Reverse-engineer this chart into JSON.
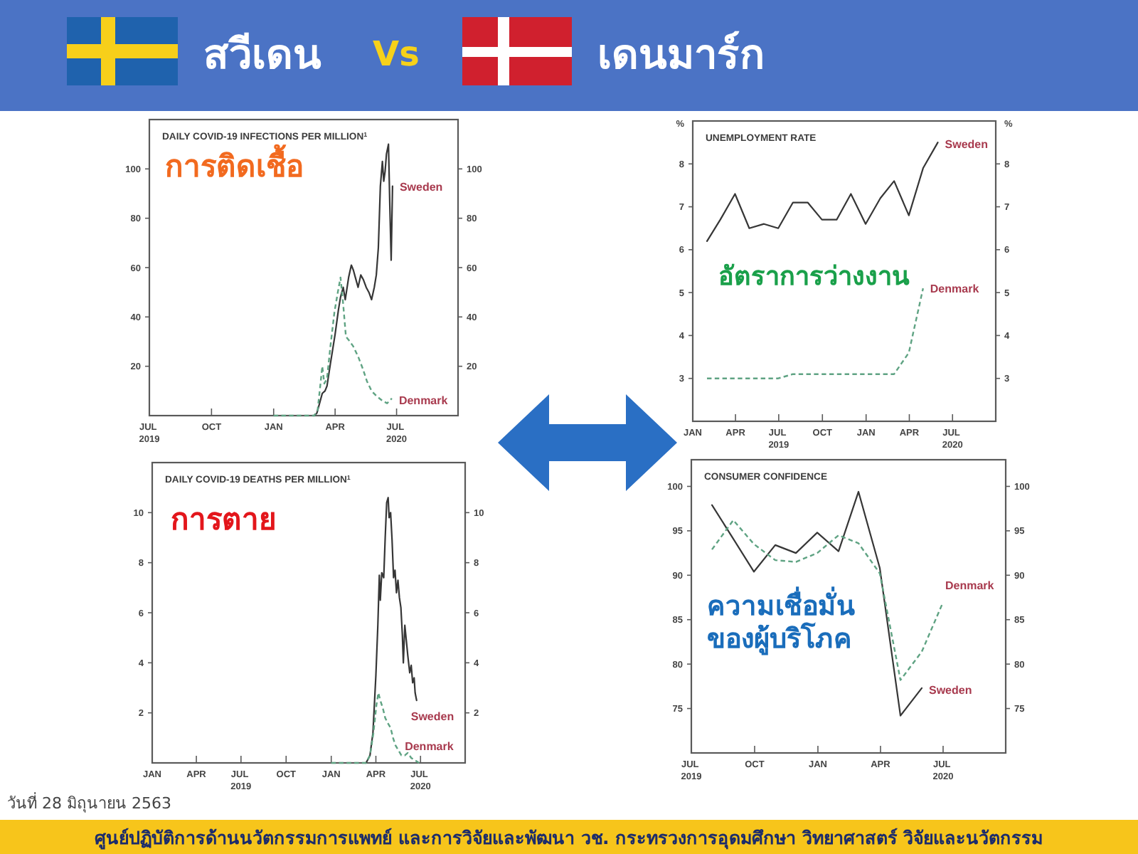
{
  "chart_data": [
    {
      "type": "other",
      "annotations": [
        "สวีเดน",
        "Vs",
        "เดนมาร์ก"
      ]
    },
    {
      "type": "line",
      "title": "DAILY COVID-19 INFECTIONS PER MILLION$^{1}$",
      "subtitle": "การติดเชื้อ",
      "xlim": [
        "2019-07-01",
        "2020-09-30"
      ],
      "xticks": [
        {
          "value": "2019-07-01",
          "label": "JUL\n2019"
        },
        {
          "value": "2019-10-01",
          "label": "OCT"
        },
        {
          "value": "2020-01-01",
          "label": "JAN"
        },
        {
          "value": "2020-04-01",
          "label": "APR"
        },
        {
          "value": "2020-07-01",
          "label": "JUL\n2020"
        }
      ],
      "ylim": [
        0,
        120
      ],
      "yticks": [
        20,
        40,
        60,
        80,
        100
      ],
      "y2lim": [
        0,
        120
      ],
      "y2ticks": [
        20,
        40,
        60,
        80,
        100
      ],
      "series": [
        {
          "name": "Sweden",
          "color": "#363636",
          "line_style": "solid",
          "x": [
            "2020-03-01",
            "2020-03-05",
            "2020-03-10",
            "2020-03-13",
            "2020-03-17",
            "2020-03-20",
            "2020-03-25",
            "2020-04-01",
            "2020-04-06",
            "2020-04-09",
            "2020-04-13",
            "2020-04-16",
            "2020-04-21",
            "2020-04-25",
            "2020-04-28",
            "2020-05-01",
            "2020-05-05",
            "2020-05-09",
            "2020-05-13",
            "2020-05-17",
            "2020-05-21",
            "2020-05-25",
            "2020-05-29",
            "2020-06-01",
            "2020-06-04",
            "2020-06-07",
            "2020-06-10",
            "2020-06-12",
            "2020-06-14",
            "2020-06-16",
            "2020-06-19",
            "2020-06-21",
            "2020-06-23",
            "2020-06-25"
          ],
          "values": [
            0,
            1,
            6,
            9,
            10,
            12,
            21,
            33,
            43,
            48,
            52,
            47,
            56,
            61,
            59,
            56,
            52,
            57,
            55,
            52,
            50,
            47,
            52,
            57,
            68,
            93,
            103,
            95,
            99,
            106,
            110,
            85,
            63,
            93
          ]
        },
        {
          "name": "Denmark",
          "color": "#5fa383",
          "line_style": "dashed",
          "x": [
            "2020-01-01",
            "2020-03-01",
            "2020-03-06",
            "2020-03-10",
            "2020-03-13",
            "2020-03-16",
            "2020-03-20",
            "2020-03-25",
            "2020-03-31",
            "2020-04-05",
            "2020-04-09",
            "2020-04-13",
            "2020-04-17",
            "2020-04-23",
            "2020-04-28",
            "2020-05-05",
            "2020-05-12",
            "2020-05-18",
            "2020-05-25",
            "2020-06-01",
            "2020-06-10",
            "2020-06-17",
            "2020-06-24"
          ],
          "values": [
            0,
            0,
            2,
            12,
            20,
            13,
            15,
            28,
            42,
            50,
            56,
            45,
            32,
            30,
            28,
            24,
            19,
            14,
            10,
            8,
            6,
            5,
            7
          ]
        }
      ]
    },
    {
      "type": "line",
      "title": "UNEMPLOYMENT RATE",
      "subtitle": "อัตราการว่างงาน",
      "ylabel": "%",
      "y2label": "%",
      "xlim": [
        "2019-01-01",
        "2020-09-30"
      ],
      "xticks": [
        {
          "value": "2019-01-01",
          "label": "JAN"
        },
        {
          "value": "2019-04-01",
          "label": "APR"
        },
        {
          "value": "2019-07-01",
          "label": "JUL\n2019"
        },
        {
          "value": "2019-10-01",
          "label": "OCT"
        },
        {
          "value": "2020-01-01",
          "label": "JAN"
        },
        {
          "value": "2020-04-01",
          "label": "APR"
        },
        {
          "value": "2020-07-01",
          "label": "JUL\n2020"
        }
      ],
      "ylim": [
        2,
        9
      ],
      "yticks": [
        3,
        4,
        5,
        6,
        7,
        8
      ],
      "y2lim": [
        2,
        9
      ],
      "y2ticks": [
        3,
        4,
        5,
        6,
        7,
        8
      ],
      "series": [
        {
          "name": "Sweden",
          "color": "#363636",
          "line_style": "solid",
          "x": [
            "2019-01-31",
            "2019-02-28",
            "2019-03-31",
            "2019-04-30",
            "2019-05-31",
            "2019-06-30",
            "2019-07-31",
            "2019-08-31",
            "2019-09-30",
            "2019-10-31",
            "2019-11-30",
            "2019-12-31",
            "2020-01-31",
            "2020-02-29",
            "2020-03-31",
            "2020-04-30",
            "2020-05-31"
          ],
          "values": [
            6.2,
            6.7,
            7.3,
            6.5,
            6.6,
            6.5,
            7.1,
            7.1,
            6.7,
            6.7,
            7.3,
            6.6,
            7.2,
            7.6,
            6.8,
            7.9,
            8.5
          ]
        },
        {
          "name": "Denmark",
          "color": "#5fa383",
          "line_style": "dashed",
          "x": [
            "2019-01-31",
            "2019-02-28",
            "2019-03-31",
            "2019-04-30",
            "2019-05-31",
            "2019-06-30",
            "2019-07-31",
            "2019-08-31",
            "2019-09-30",
            "2019-10-31",
            "2019-11-30",
            "2019-12-31",
            "2020-01-31",
            "2020-02-29",
            "2020-03-31",
            "2020-04-30"
          ],
          "values": [
            3.0,
            3.0,
            3.0,
            3.0,
            3.0,
            3.0,
            3.1,
            3.1,
            3.1,
            3.1,
            3.1,
            3.1,
            3.1,
            3.1,
            3.6,
            5.1
          ]
        }
      ]
    },
    {
      "type": "line",
      "title": "DAILY COVID-19 DEATHS PER MILLION$^{1}$",
      "subtitle": "การตาย",
      "xlim": [
        "2019-01-01",
        "2020-09-30"
      ],
      "xticks": [
        {
          "value": "2019-01-01",
          "label": "JAN"
        },
        {
          "value": "2019-04-01",
          "label": "APR"
        },
        {
          "value": "2019-07-01",
          "label": "JUL\n2019"
        },
        {
          "value": "2019-10-01",
          "label": "OCT"
        },
        {
          "value": "2020-01-01",
          "label": "JAN"
        },
        {
          "value": "2020-04-01",
          "label": "APR"
        },
        {
          "value": "2020-07-01",
          "label": "JUL\n2020"
        }
      ],
      "ylim": [
        0,
        12
      ],
      "yticks": [
        2,
        4,
        6,
        8,
        10
      ],
      "y2lim": [
        0,
        12
      ],
      "y2ticks": [
        2,
        4,
        6,
        8,
        10
      ],
      "series": [
        {
          "name": "Sweden",
          "color": "#363636",
          "line_style": "solid",
          "x": [
            "2020-03-12",
            "2020-03-20",
            "2020-03-26",
            "2020-04-01",
            "2020-04-05",
            "2020-04-08",
            "2020-04-10",
            "2020-04-13",
            "2020-04-17",
            "2020-04-20",
            "2020-04-23",
            "2020-04-26",
            "2020-04-28",
            "2020-05-01",
            "2020-05-04",
            "2020-05-07",
            "2020-05-10",
            "2020-05-13",
            "2020-05-16",
            "2020-05-19",
            "2020-05-22",
            "2020-05-25",
            "2020-05-27",
            "2020-05-30",
            "2020-06-02",
            "2020-06-05",
            "2020-06-09",
            "2020-06-12",
            "2020-06-15",
            "2020-06-18",
            "2020-06-20",
            "2020-06-23"
          ],
          "values": [
            0,
            0.3,
            1.2,
            3.5,
            5.5,
            7.5,
            6.5,
            7.6,
            7.4,
            9,
            10.4,
            10.6,
            9.8,
            10,
            8.9,
            7.4,
            7.7,
            6.8,
            7.3,
            6.6,
            6.2,
            5.1,
            4,
            5.5,
            4.9,
            4.3,
            3.6,
            3.9,
            3.2,
            3.4,
            2.8,
            2.5
          ]
        },
        {
          "name": "Denmark",
          "color": "#5fa383",
          "line_style": "dashed",
          "x": [
            "2020-01-01",
            "2020-03-12",
            "2020-03-20",
            "2020-03-27",
            "2020-04-02",
            "2020-04-06",
            "2020-04-10",
            "2020-04-15",
            "2020-04-20",
            "2020-04-25",
            "2020-05-01",
            "2020-05-06",
            "2020-05-11",
            "2020-05-17",
            "2020-05-23",
            "2020-05-30",
            "2020-06-05",
            "2020-06-12",
            "2020-06-20",
            "2020-06-28"
          ],
          "values": [
            0,
            0,
            0.3,
            1.2,
            2.3,
            2.8,
            2.5,
            2.2,
            1.8,
            1.6,
            1.4,
            1,
            0.7,
            0.5,
            0.3,
            0.3,
            0.4,
            0.2,
            0.1,
            0
          ]
        }
      ]
    },
    {
      "type": "line",
      "title": "CONSUMER CONFIDENCE",
      "subtitle": "ความเชื่อมั่น\nของผู้บริโภค",
      "xlim": [
        "2019-07-01",
        "2020-09-30"
      ],
      "xticks": [
        {
          "value": "2019-07-01",
          "label": "JUL\n2019"
        },
        {
          "value": "2019-10-01",
          "label": "OCT"
        },
        {
          "value": "2020-01-01",
          "label": "JAN"
        },
        {
          "value": "2020-04-01",
          "label": "APR"
        },
        {
          "value": "2020-07-01",
          "label": "JUL\n2020"
        }
      ],
      "ylim": [
        70,
        103
      ],
      "yticks": [
        75,
        80,
        85,
        90,
        95,
        100
      ],
      "y2lim": [
        70,
        103
      ],
      "y2ticks": [
        75,
        80,
        85,
        90,
        95,
        100
      ],
      "series": [
        {
          "name": "Sweden",
          "color": "#363636",
          "line_style": "solid",
          "x": [
            "2019-07-31",
            "2019-08-31",
            "2019-09-30",
            "2019-10-31",
            "2019-11-30",
            "2019-12-31",
            "2020-01-31",
            "2020-02-29",
            "2020-03-31",
            "2020-04-30",
            "2020-05-31"
          ],
          "values": [
            97.9,
            94.1,
            90.4,
            93.4,
            92.5,
            94.8,
            92.7,
            99.4,
            90.8,
            74.2,
            77.3
          ]
        },
        {
          "name": "Denmark",
          "color": "#5fa383",
          "line_style": "dashed",
          "x": [
            "2019-07-31",
            "2019-08-31",
            "2019-09-30",
            "2019-10-31",
            "2019-11-30",
            "2019-12-31",
            "2020-01-31",
            "2020-02-29",
            "2020-03-31",
            "2020-04-30",
            "2020-05-31",
            "2020-06-30"
          ],
          "values": [
            92.9,
            96.2,
            93.5,
            91.7,
            91.5,
            92.5,
            94.5,
            93.6,
            90.2,
            78.2,
            81.4,
            86.8
          ]
        }
      ]
    },
    {
      "type": "other",
      "annotations": [
        "วันที่ 28 มิถุนายน 2563",
        "ศูนย์ปฏิบัติการด้านนวัตกรรมการแพทย์ และการวิจัยและพัฒนา วช. กระทรวงการอุดมศึกษา วิทยาศาสตร์ วิจัยและนวัตกรรม"
      ]
    }
  ]
}
